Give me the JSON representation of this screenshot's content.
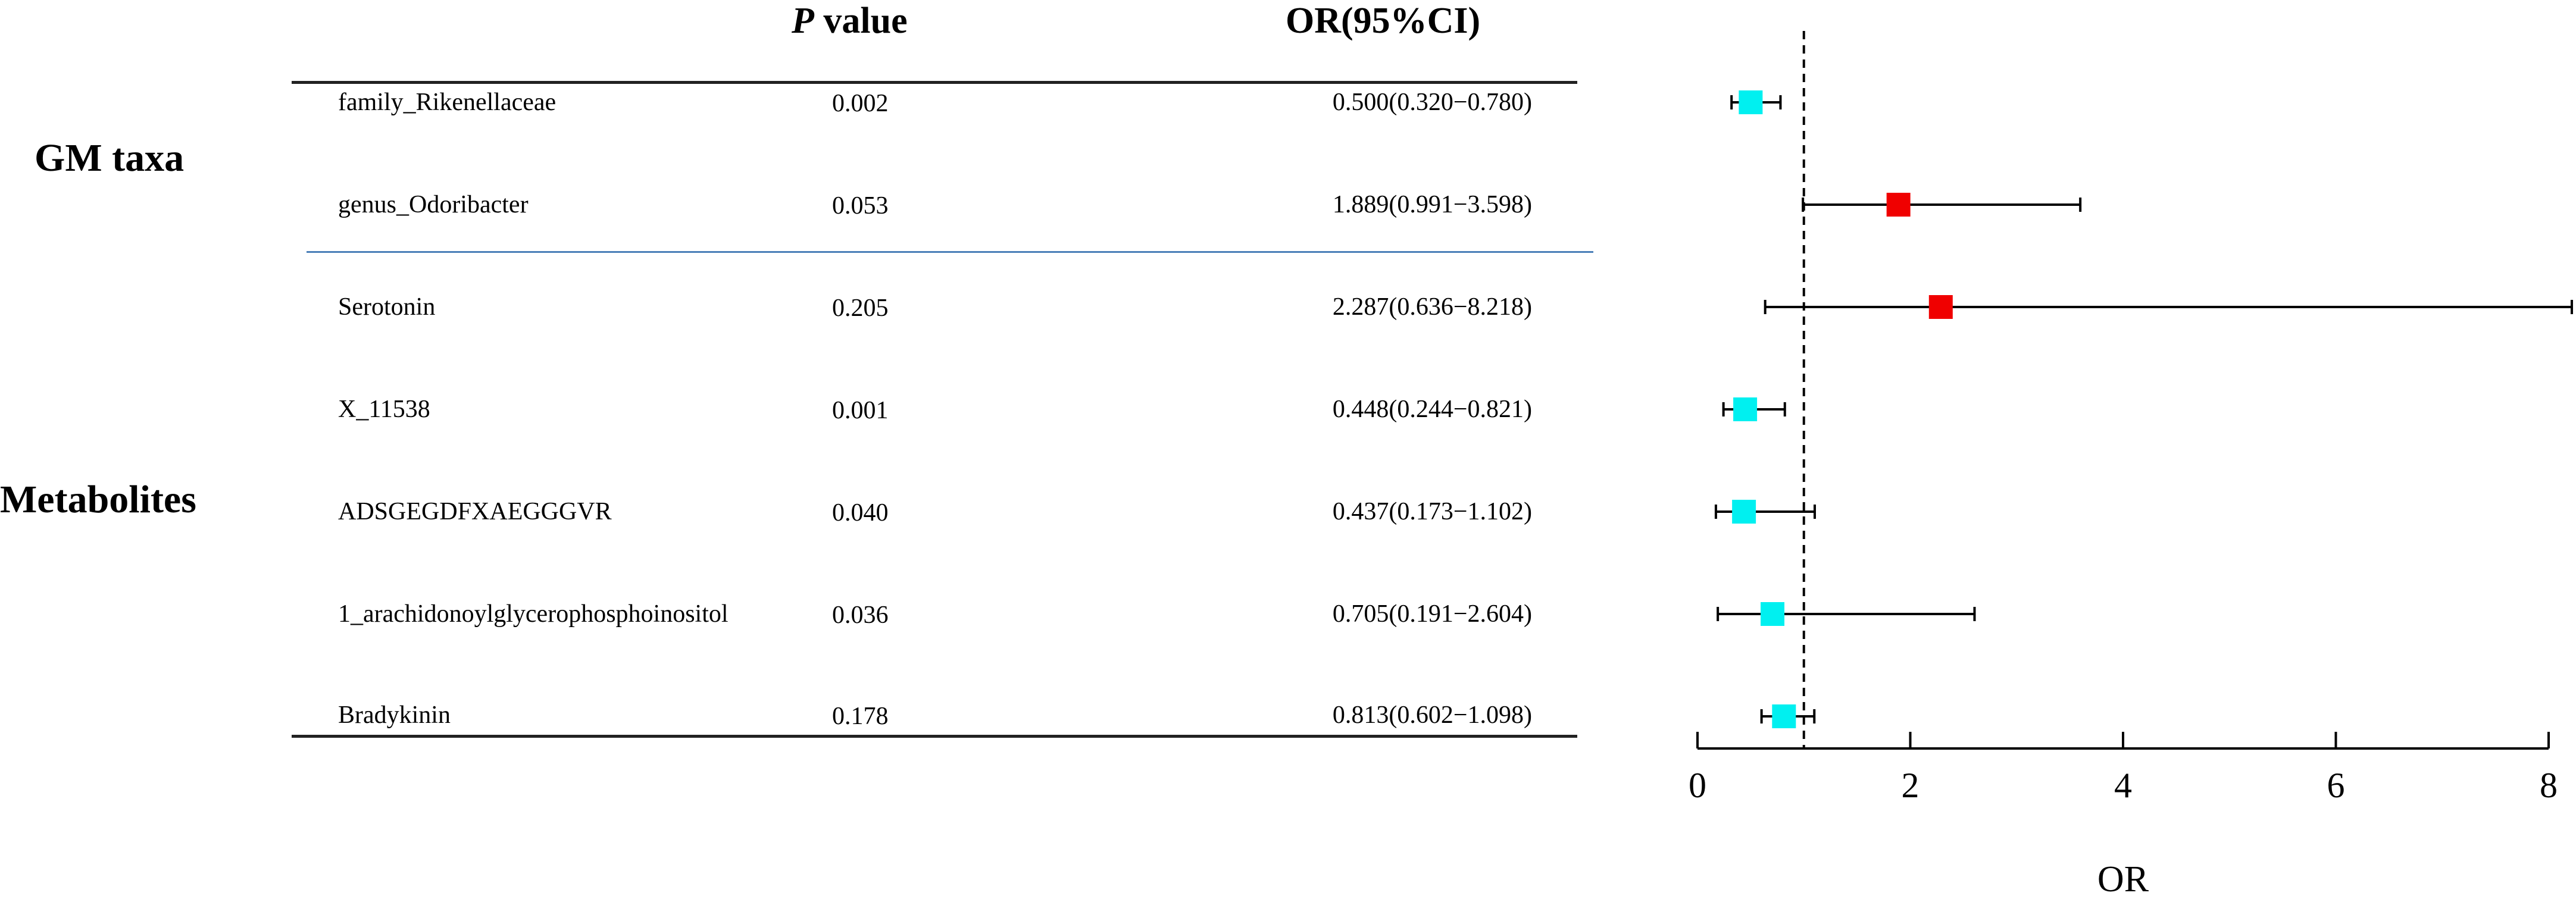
{
  "headers": {
    "p_italic": "P",
    "p_rest": " value",
    "or": "OR(95%CI)"
  },
  "groups": {
    "gm": "GM taxa",
    "metabolites": "Metabolites"
  },
  "rows": [
    {
      "name": "family_Rikenellaceae",
      "p": "0.002",
      "or_ci": "0.500(0.320−0.780)"
    },
    {
      "name": "genus_Odoribacter",
      "p": "0.053",
      "or_ci": "1.889(0.991−3.598)"
    },
    {
      "name": "Serotonin",
      "p": "0.205",
      "or_ci": "2.287(0.636−8.218)"
    },
    {
      "name": "X_11538",
      "p": "0.001",
      "or_ci": "0.448(0.244−0.821)"
    },
    {
      "name": "ADSGEGDFXAEGGGVR",
      "p": "0.040",
      "or_ci": "0.437(0.173−1.102)"
    },
    {
      "name": "1_arachidonoylglycerophosphoinositol",
      "p": "0.036",
      "or_ci": "0.705(0.191−2.604)"
    },
    {
      "name": "Bradykinin",
      "p": "0.178",
      "or_ci": "0.813(0.602−1.098)"
    }
  ],
  "chart_data": {
    "type": "scatter",
    "subtype": "forest-plot",
    "title": "",
    "xlabel": "OR",
    "ylabel": "",
    "xlim": [
      0,
      8
    ],
    "xticks": [
      0,
      2,
      4,
      6,
      8
    ],
    "reference_line": 1,
    "reference_line_style": "dashed",
    "grid": false,
    "legend": "none",
    "categories": [
      "family_Rikenellaceae",
      "genus_Odoribacter",
      "Serotonin",
      "X_11538",
      "ADSGEGDFXAEGGGVR",
      "1_arachidonoylglycerophosphoinositol",
      "Bradykinin"
    ],
    "or": [
      0.5,
      1.889,
      2.287,
      0.448,
      0.437,
      0.705,
      0.813
    ],
    "lower": [
      0.32,
      0.991,
      0.636,
      0.244,
      0.173,
      0.191,
      0.602
    ],
    "upper": [
      0.78,
      3.598,
      8.218,
      0.821,
      1.102,
      2.604,
      1.098
    ],
    "colors": {
      "protective": "#00f0f0",
      "risk": "#f00000",
      "axis": "#000000",
      "separator": "#4a7fb8"
    }
  }
}
